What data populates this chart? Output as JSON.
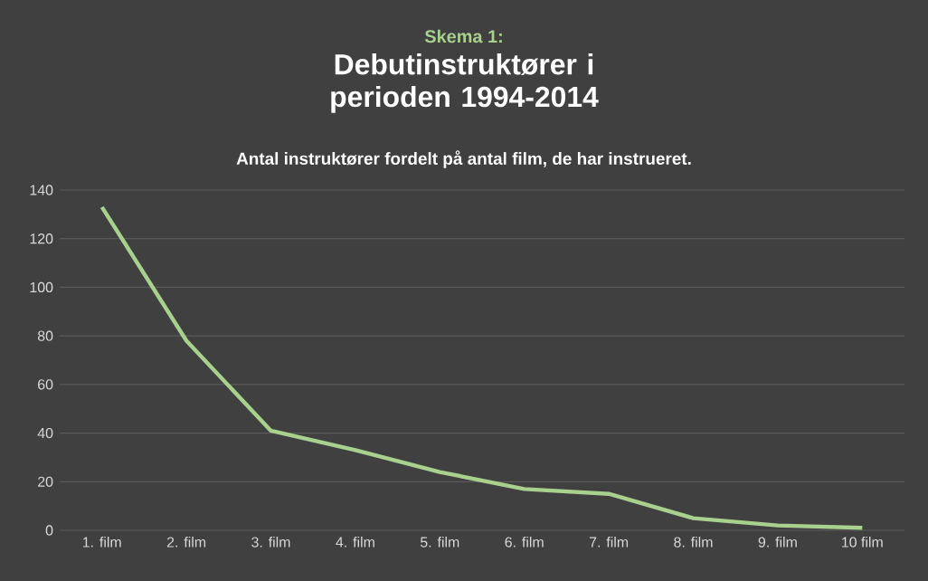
{
  "chart_data": {
    "type": "line",
    "title": "Debutinstruktører i perioden 1994-2014",
    "subtitle": "Antal instruktører fordelt på antal film, de har instrueret.",
    "annotations": [
      "Skema 1:"
    ],
    "categories": [
      "1. film",
      "2. film",
      "3. film",
      "4. film",
      "5. film",
      "6. film",
      "7. film",
      "8. film",
      "9. film",
      "10 film"
    ],
    "series": [
      {
        "color": "#a9d18e",
        "values": [
          133,
          78,
          41,
          33,
          24,
          17,
          15,
          5,
          2,
          1
        ]
      }
    ],
    "ylim": [
      0,
      140
    ],
    "yticks": [
      0,
      20,
      40,
      60,
      80,
      100,
      120,
      140
    ],
    "grid": "y",
    "marker": "none",
    "line_style": "solid"
  }
}
